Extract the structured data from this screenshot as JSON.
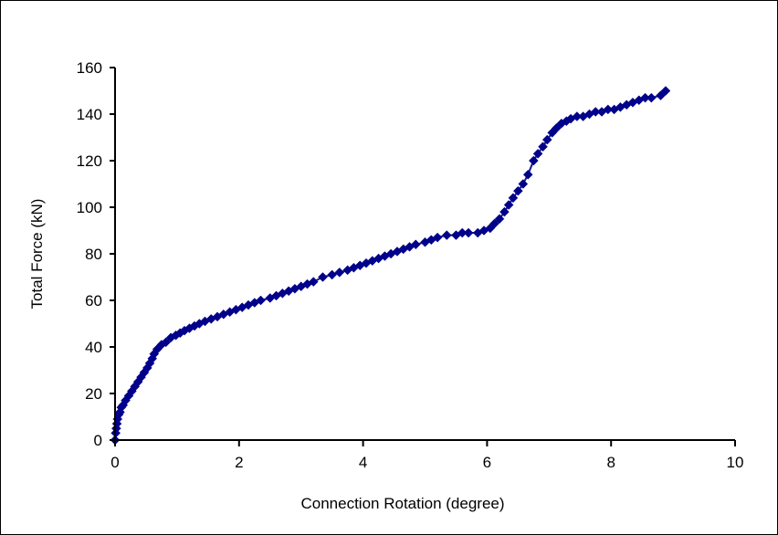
{
  "chart_data": {
    "type": "scatter",
    "title": "",
    "xlabel": "Connection Rotation (degree)",
    "ylabel": "Total Force (kN)",
    "xlim": [
      0,
      10
    ],
    "ylim": [
      0,
      160
    ],
    "xticks": [
      0,
      2,
      4,
      6,
      8,
      10
    ],
    "yticks": [
      0,
      20,
      40,
      60,
      80,
      100,
      120,
      140,
      160
    ],
    "grid": false,
    "legend": "none",
    "line": true,
    "marker": "diamond",
    "colors": {
      "series": "#00008B",
      "line": "#1a1a8c",
      "axis": "#000000"
    },
    "series": [
      {
        "x": [
          0.0,
          0.01,
          0.02,
          0.03,
          0.04,
          0.06,
          0.08,
          0.1,
          0.13,
          0.17,
          0.22,
          0.27,
          0.32,
          0.37,
          0.42,
          0.47,
          0.52,
          0.56,
          0.6,
          0.63,
          0.68,
          0.75,
          0.82,
          0.9,
          0.98,
          1.05,
          1.12,
          1.2,
          1.28,
          1.36,
          1.45,
          1.55,
          1.65,
          1.75,
          1.85,
          1.95,
          2.05,
          2.15,
          2.25,
          2.35,
          2.5,
          2.6,
          2.7,
          2.8,
          2.9,
          3.0,
          3.1,
          3.2,
          3.35,
          3.5,
          3.62,
          3.75,
          3.85,
          3.95,
          4.05,
          4.15,
          4.25,
          4.35,
          4.45,
          4.55,
          4.65,
          4.75,
          4.85,
          5.0,
          5.1,
          5.2,
          5.35,
          5.5,
          5.6,
          5.7,
          5.85,
          5.95,
          6.05,
          6.12,
          6.2,
          6.28,
          6.35,
          6.42,
          6.5,
          6.58,
          6.66,
          6.75,
          6.82,
          6.9,
          6.97,
          7.05,
          7.12,
          7.2,
          7.28,
          7.35,
          7.45,
          7.55,
          7.65,
          7.75,
          7.85,
          7.95,
          8.05,
          8.15,
          8.25,
          8.35,
          8.45,
          8.55,
          8.65,
          8.8,
          8.88
        ],
        "y": [
          0,
          3,
          5,
          7,
          9,
          11,
          12,
          14,
          15,
          17,
          19,
          21,
          23,
          25,
          27,
          29,
          31,
          33,
          35,
          37,
          39,
          41,
          42,
          44,
          45,
          46,
          47,
          48,
          49,
          50,
          51,
          52,
          53,
          54,
          55,
          56,
          57,
          58,
          59,
          60,
          61,
          62,
          63,
          64,
          65,
          66,
          67,
          68,
          70,
          71,
          72,
          73,
          74,
          75,
          76,
          77,
          78,
          79,
          80,
          81,
          82,
          83,
          84,
          85,
          86,
          87,
          88,
          88,
          89,
          89,
          89,
          90,
          91,
          93,
          95,
          98,
          101,
          104,
          107,
          110,
          114,
          120,
          123,
          126,
          129,
          132,
          134,
          136,
          137,
          138,
          139,
          139,
          140,
          141,
          141,
          142,
          142,
          143,
          144,
          145,
          146,
          147,
          147,
          148,
          150
        ]
      }
    ]
  }
}
